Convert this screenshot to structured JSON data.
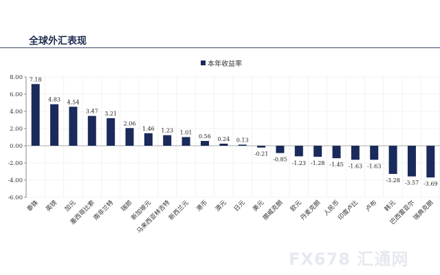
{
  "header": {
    "title": "全球外汇表现"
  },
  "watermark": "FX678 汇通网",
  "chart_data": {
    "type": "bar",
    "title": "",
    "legend": [
      {
        "name": "本年收益率",
        "color": "#1a2a5a"
      }
    ],
    "legend_position": "top",
    "categories": [
      "泰铢",
      "英镑",
      "加元",
      "墨西哥比索",
      "南非兰特",
      "瑞郎",
      "新加坡元",
      "马来西亚林吉特",
      "新西兰元",
      "港币",
      "澳元",
      "日元",
      "美元",
      "挪威克朗",
      "欧元",
      "丹麦克朗",
      "人民币",
      "印度卢比",
      "卢布",
      "韩元",
      "巴西雷亚尔",
      "瑞典克朗"
    ],
    "series": [
      {
        "name": "本年收益率",
        "values": [
          7.18,
          4.83,
          4.54,
          3.47,
          3.21,
          2.06,
          1.46,
          1.23,
          1.01,
          0.56,
          0.24,
          0.13,
          -0.21,
          -0.85,
          -1.23,
          -1.28,
          -1.45,
          -1.63,
          -1.63,
          -3.28,
          -3.57,
          -3.69
        ]
      }
    ],
    "data_labels": [
      "7.18",
      "4.83",
      "4.54",
      "3.47",
      "3.21",
      "2.06",
      "1.46",
      "1.23",
      "1.01",
      "0.56",
      "0.24",
      "0.13",
      "-0.21",
      "-0.85",
      "-1.23",
      "-1.28",
      "-1.45",
      "-1.63",
      "-1.63",
      "-3.28",
      "-3.57",
      "-3.69"
    ],
    "yticks": [
      "8.00",
      "6.00",
      "4.00",
      "2.00",
      "0.00",
      "-2.00",
      "-4.00",
      "-6.00"
    ],
    "ylim": [
      -6,
      8
    ],
    "grid": true,
    "color": "#1a2a5a"
  }
}
